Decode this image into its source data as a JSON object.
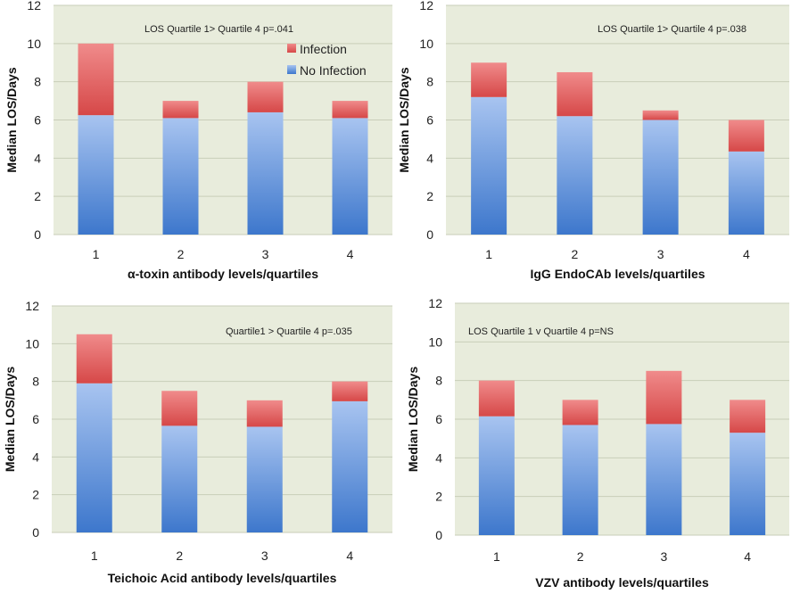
{
  "colors": {
    "plot_bg": "#e8ecdc",
    "grid": "#c9ceb9",
    "no_infection_top": "#a8c4f0",
    "no_infection_bottom": "#3d77cc",
    "infection_top": "#f08b8b",
    "infection_bottom": "#d64848"
  },
  "legend": {
    "infection": "Infection",
    "no_infection": "No Infection"
  },
  "chart_data": [
    {
      "type": "bar",
      "stacked": true,
      "categories": [
        "1",
        "2",
        "3",
        "4"
      ],
      "series": [
        {
          "name": "No Infection",
          "values": [
            6.25,
            6.1,
            6.4,
            6.1
          ]
        },
        {
          "name": "Infection",
          "values": [
            3.75,
            0.9,
            1.6,
            0.9
          ]
        }
      ],
      "ylabel": "Median LOS/Days",
      "xlabel": "α-toxin antibody levels/quartiles",
      "annotation": "LOS Quartile 1> Quartile 4 p=.041",
      "yticks": [
        "0",
        "2",
        "4",
        "6",
        "8",
        "10",
        "12"
      ],
      "ylim": [
        0,
        12
      ],
      "legend": "top-right"
    },
    {
      "type": "bar",
      "stacked": true,
      "categories": [
        "1",
        "2",
        "3",
        "4"
      ],
      "series": [
        {
          "name": "No Infection",
          "values": [
            7.2,
            6.2,
            6.0,
            4.35
          ]
        },
        {
          "name": "Infection",
          "values": [
            1.8,
            2.3,
            0.5,
            1.65
          ]
        }
      ],
      "ylabel": "Median LOS/Days",
      "xlabel": "IgG EndoCAb levels/quartiles",
      "annotation": "LOS Quartile 1> Quartile 4 p=.038",
      "yticks": [
        "0",
        "2",
        "4",
        "6",
        "8",
        "10",
        "12"
      ],
      "ylim": [
        0,
        12
      ]
    },
    {
      "type": "bar",
      "stacked": true,
      "categories": [
        "1",
        "2",
        "3",
        "4"
      ],
      "series": [
        {
          "name": "No Infection",
          "values": [
            7.9,
            5.65,
            5.6,
            6.95
          ]
        },
        {
          "name": "Infection",
          "values": [
            2.6,
            1.85,
            1.4,
            1.05
          ]
        }
      ],
      "ylabel": "Median LOS/Days",
      "xlabel": "Teichoic Acid antibody levels/quartiles",
      "annotation": "Quartile1 > Quartile 4 p=.035",
      "yticks": [
        "0",
        "2",
        "4",
        "6",
        "8",
        "10",
        "12"
      ],
      "ylim": [
        0,
        12
      ]
    },
    {
      "type": "bar",
      "stacked": true,
      "categories": [
        "1",
        "2",
        "3",
        "4"
      ],
      "series": [
        {
          "name": "No Infection",
          "values": [
            6.15,
            5.7,
            5.75,
            5.3
          ]
        },
        {
          "name": "Infection",
          "values": [
            1.85,
            1.3,
            2.75,
            1.7
          ]
        }
      ],
      "ylabel": "Median LOS/Days",
      "xlabel": "VZV antibody levels/quartiles",
      "annotation": "LOS Quartile 1 v Quartile 4 p=NS",
      "yticks": [
        "0",
        "2",
        "4",
        "6",
        "8",
        "10",
        "12"
      ],
      "ylim": [
        0,
        12
      ]
    }
  ]
}
